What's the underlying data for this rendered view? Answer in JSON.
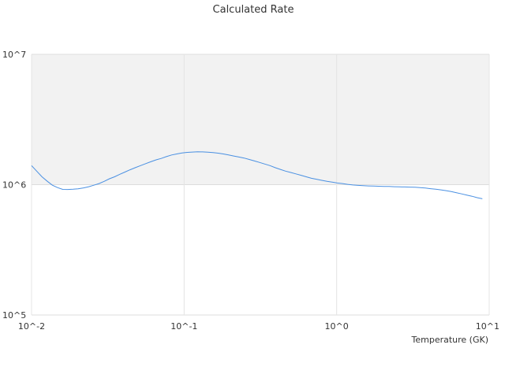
{
  "chart_data": {
    "type": "line",
    "title": "Calculated Rate",
    "xlabel": "Temperature (GK)",
    "ylabel": "",
    "x_scale": "log",
    "y_scale": "log",
    "xlim": [
      0.01,
      10
    ],
    "ylim": [
      100000,
      10000000
    ],
    "x_ticks": [
      {
        "value": 0.01,
        "label": "10^-2"
      },
      {
        "value": 0.1,
        "label": "10^-1"
      },
      {
        "value": 1,
        "label": "10^0"
      },
      {
        "value": 10,
        "label": "10^1"
      }
    ],
    "y_ticks": [
      {
        "value": 100000,
        "label": "10^5"
      },
      {
        "value": 1000000,
        "label": "10^6"
      },
      {
        "value": 10000000,
        "label": "10^7"
      }
    ],
    "shaded_band": {
      "y_from": 1000000,
      "y_to": 10000000,
      "color": "#f2f2f2"
    },
    "grid": true,
    "line_color": "#4a90e2",
    "series": [
      {
        "name": "",
        "x": [
          0.01,
          0.0108,
          0.0117,
          0.0127,
          0.0137,
          0.0148,
          0.016,
          0.0173,
          0.0187,
          0.0202,
          0.0219,
          0.0237,
          0.0256,
          0.0277,
          0.0299,
          0.0324,
          0.035,
          0.0378,
          0.0409,
          0.0442,
          0.0479,
          0.0518,
          0.056,
          0.0605,
          0.0655,
          0.0708,
          0.0765,
          0.0828,
          0.0895,
          0.0968,
          0.1047,
          0.1132,
          0.1224,
          0.1323,
          0.1431,
          0.1547,
          0.1673,
          0.1809,
          0.1956,
          0.2115,
          0.2287,
          0.2473,
          0.2674,
          0.2892,
          0.3127,
          0.3381,
          0.3656,
          0.3953,
          0.4275,
          0.4622,
          0.4998,
          0.5404,
          0.5844,
          0.6319,
          0.6833,
          0.7388,
          0.7989,
          0.8639,
          0.9341,
          1.01,
          1.092,
          1.181,
          1.277,
          1.381,
          1.493,
          1.614,
          1.746,
          1.888,
          2.041,
          2.207,
          2.387,
          2.581,
          2.791,
          3.018,
          3.263,
          3.528,
          3.815,
          4.125,
          4.461,
          4.823,
          5.216,
          5.64,
          6.098,
          6.594,
          7.131,
          7.711,
          8.337,
          9.015
        ],
        "y": [
          1400000,
          1270000,
          1150000,
          1060000,
          990000,
          950000,
          920000,
          918000,
          922000,
          930000,
          945000,
          965000,
          990000,
          1020000,
          1060000,
          1110000,
          1150000,
          1200000,
          1250000,
          1300000,
          1350000,
          1400000,
          1450000,
          1500000,
          1550000,
          1590000,
          1640000,
          1690000,
          1720000,
          1750000,
          1770000,
          1780000,
          1790000,
          1785000,
          1775000,
          1765000,
          1745000,
          1720000,
          1690000,
          1660000,
          1630000,
          1600000,
          1560000,
          1520000,
          1480000,
          1440000,
          1400000,
          1350000,
          1310000,
          1270000,
          1240000,
          1210000,
          1180000,
          1150000,
          1120000,
          1100000,
          1080000,
          1060000,
          1045000,
          1030000,
          1020000,
          1005000,
          995000,
          988000,
          982000,
          978000,
          975000,
          972000,
          970000,
          968000,
          965000,
          962000,
          960000,
          958000,
          955000,
          950000,
          942000,
          932000,
          922000,
          912000,
          900000,
          885000,
          868000,
          850000,
          832000,
          815000,
          795000,
          780000
        ]
      }
    ]
  }
}
